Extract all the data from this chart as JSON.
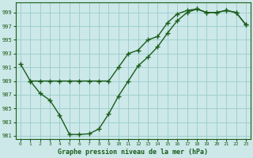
{
  "xlabel": "Graphe pression niveau de la mer (hPa)",
  "background_color": "#cce8e8",
  "grid_color": "#99cccc",
  "line_color": "#1a5c1a",
  "xlim": [
    -0.5,
    23.5
  ],
  "ylim": [
    980.5,
    1000.5
  ],
  "yticks": [
    981,
    983,
    985,
    987,
    989,
    991,
    993,
    995,
    997,
    999
  ],
  "xticks": [
    0,
    1,
    2,
    3,
    4,
    5,
    6,
    7,
    8,
    9,
    10,
    11,
    12,
    13,
    14,
    15,
    16,
    17,
    18,
    19,
    20,
    21,
    22,
    23
  ],
  "series1_x": [
    0,
    1,
    2,
    3,
    4,
    5,
    6,
    7,
    8,
    9,
    10,
    11,
    12,
    13,
    14,
    15,
    16,
    17,
    18,
    19,
    20,
    21,
    22,
    23
  ],
  "series1_y": [
    991.5,
    989.0,
    989.0,
    989.0,
    989.0,
    989.0,
    989.0,
    989.0,
    989.0,
    989.0,
    991.0,
    993.0,
    993.5,
    995.0,
    995.5,
    997.5,
    998.8,
    999.3,
    999.5,
    999.0,
    999.0,
    999.3,
    999.0,
    997.2
  ],
  "series2_x": [
    1,
    2,
    3,
    4,
    5,
    6,
    7,
    8,
    9,
    10,
    11,
    12,
    13,
    14,
    15,
    16,
    17,
    18,
    19,
    20,
    21,
    22,
    23
  ],
  "series2_y": [
    989.0,
    987.2,
    986.2,
    984.0,
    981.2,
    981.2,
    981.3,
    982.0,
    984.2,
    986.8,
    989.0,
    991.2,
    992.5,
    994.0,
    996.0,
    997.8,
    999.0,
    999.5,
    999.0,
    999.0,
    999.3,
    999.0,
    997.2
  ]
}
